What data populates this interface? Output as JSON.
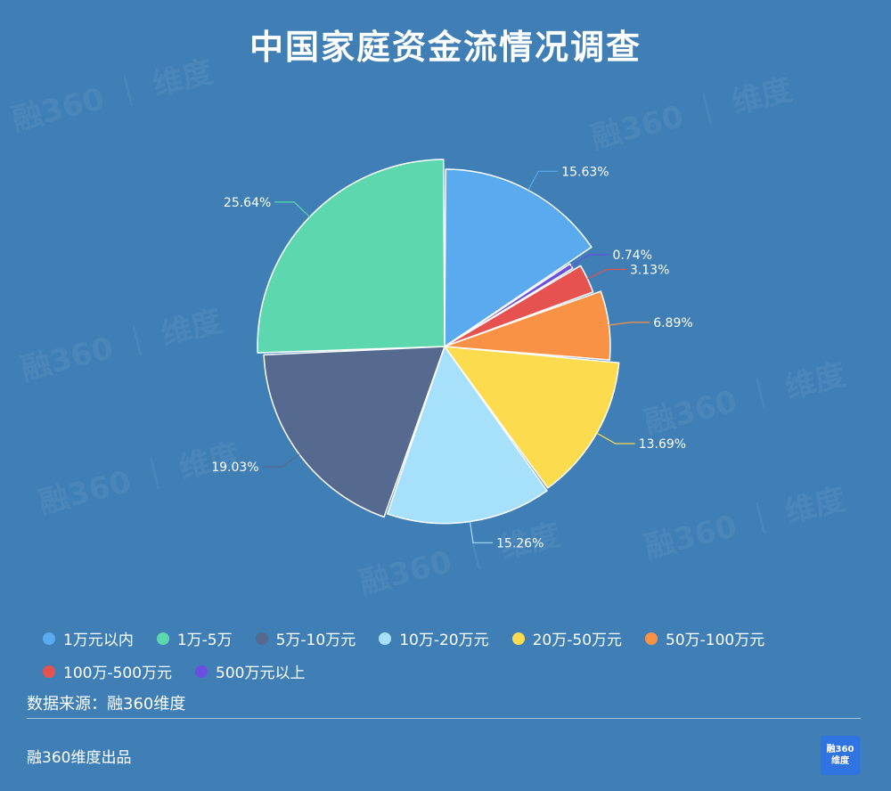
{
  "page": {
    "title": "中国家庭资金流情况调查",
    "source": "数据来源：融360维度",
    "credit": "融360维度出品",
    "logo": {
      "line1": "融360",
      "line2": "维度"
    },
    "watermark_text": "融360｜维度"
  },
  "colors": {
    "background": "#3f7fb5",
    "slice_border": "#ffffff"
  },
  "chart_data": {
    "type": "pie",
    "title": "中国家庭资金流情况调查",
    "legend_position": "bottom",
    "slices": [
      {
        "label": "1万元以内",
        "value": 15.63,
        "display": "15.63%",
        "color": "#5aaaf0"
      },
      {
        "label": "500万元以上",
        "value": 0.74,
        "display": "0.74%",
        "color": "#6a4fe0"
      },
      {
        "label": "100万-500万元",
        "value": 3.13,
        "display": "3.13%",
        "color": "#e5524f"
      },
      {
        "label": "50万-100万元",
        "value": 6.89,
        "display": "6.89%",
        "color": "#fa9246"
      },
      {
        "label": "20万-50万元",
        "value": 13.69,
        "display": "13.69%",
        "color": "#fcdb4f"
      },
      {
        "label": "10万-20万元",
        "value": 15.26,
        "display": "15.26%",
        "color": "#a6e0fb"
      },
      {
        "label": "5万-10万元",
        "value": 19.03,
        "display": "19.03%",
        "color": "#56698f"
      },
      {
        "label": "1万-5万",
        "value": 25.64,
        "display": "25.64%",
        "color": "#5dd7ad"
      }
    ],
    "legend": [
      {
        "label": "1万元以内",
        "color": "#5aaaf0"
      },
      {
        "label": "1万-5万",
        "color": "#5dd7ad"
      },
      {
        "label": "5万-10万元",
        "color": "#56698f"
      },
      {
        "label": "10万-20万元",
        "color": "#a6e0fb"
      },
      {
        "label": "20万-50万元",
        "color": "#fcdb4f"
      },
      {
        "label": "50万-100万元",
        "color": "#fa9246"
      },
      {
        "label": "100万-500万元",
        "color": "#e5524f"
      },
      {
        "label": "500万元以上",
        "color": "#6a4fe0"
      }
    ]
  }
}
